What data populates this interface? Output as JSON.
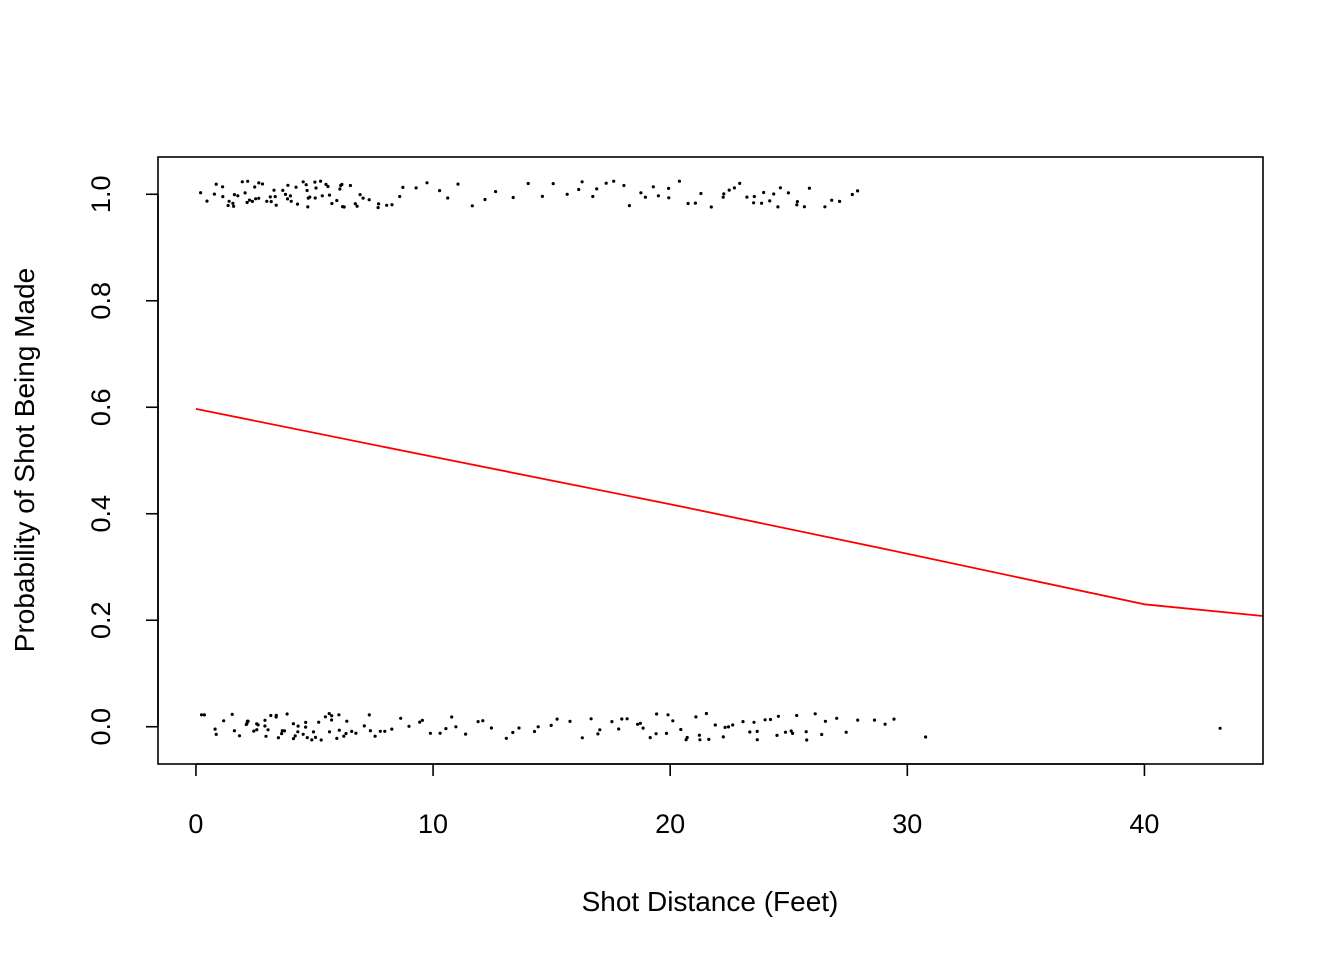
{
  "chart_data": {
    "type": "scatter",
    "title": "",
    "xlabel": "Shot Distance (Feet)",
    "ylabel": "Probability of Shot Being Made",
    "xlim": [
      -1.6,
      45
    ],
    "ylim": [
      -0.07,
      1.07
    ],
    "x_ticks": [
      "0",
      "10",
      "20",
      "30",
      "40"
    ],
    "x_tick_values": [
      0,
      10,
      20,
      30,
      40
    ],
    "y_ticks": [
      "0.0",
      "0.2",
      "0.4",
      "0.6",
      "0.8",
      "1.0"
    ],
    "y_tick_values": [
      0,
      0.2,
      0.4,
      0.6,
      0.8,
      1.0
    ],
    "grid": false,
    "legend": "none",
    "colors": {
      "points": "#000000",
      "fit_line": "#ff0000",
      "frame": "#000000"
    },
    "fitted_curve": {
      "x": [
        0,
        10,
        20,
        30,
        40,
        45
      ],
      "y": [
        0.597,
        0.507,
        0.418,
        0.325,
        0.23,
        0.208
      ]
    },
    "made_shots": {
      "y": 1.0,
      "x": [
        0.2,
        0.6,
        0.8,
        1.0,
        1.1,
        1.2,
        1.3,
        1.4,
        1.5,
        1.6,
        1.7,
        1.8,
        1.9,
        2.0,
        2.1,
        2.2,
        2.3,
        2.4,
        2.5,
        2.6,
        2.7,
        2.8,
        2.9,
        3.0,
        3.1,
        3.2,
        3.3,
        3.4,
        3.5,
        3.6,
        3.7,
        3.8,
        3.9,
        4.0,
        4.1,
        4.2,
        4.3,
        4.4,
        4.5,
        4.6,
        4.7,
        4.8,
        4.9,
        5.0,
        5.1,
        5.2,
        5.3,
        5.4,
        5.5,
        5.6,
        5.7,
        5.8,
        5.9,
        6.0,
        6.1,
        6.2,
        6.3,
        6.4,
        6.5,
        6.6,
        6.8,
        7.0,
        7.2,
        7.4,
        7.6,
        7.8,
        8.0,
        8.3,
        8.6,
        8.9,
        9.3,
        9.8,
        10.2,
        10.7,
        11.2,
        11.8,
        12.3,
        12.8,
        13.4,
        14.0,
        14.6,
        15.2,
        15.6,
        16.0,
        16.3,
        16.6,
        16.9,
        17.2,
        17.6,
        18.0,
        18.3,
        18.6,
        18.9,
        19.2,
        19.5,
        19.8,
        20.1,
        20.4,
        20.7,
        21.0,
        21.4,
        21.8,
        22.1,
        22.4,
        22.6,
        22.8,
        23.0,
        23.2,
        23.4,
        23.6,
        23.8,
        24.0,
        24.2,
        24.4,
        24.6,
        24.8,
        25.0,
        25.2,
        25.4,
        25.7,
        26.0,
        26.4,
        26.8,
        27.2,
        27.6,
        28.0
      ]
    },
    "missed_shots": {
      "y": 0.0,
      "x": [
        0.1,
        0.4,
        0.7,
        1.0,
        1.3,
        1.5,
        1.7,
        1.9,
        2.0,
        2.1,
        2.2,
        2.3,
        2.4,
        2.5,
        2.6,
        2.7,
        2.8,
        2.9,
        3.0,
        3.1,
        3.2,
        3.3,
        3.4,
        3.5,
        3.6,
        3.7,
        3.8,
        3.9,
        4.0,
        4.1,
        4.2,
        4.3,
        4.4,
        4.5,
        4.6,
        4.7,
        4.8,
        4.9,
        5.0,
        5.1,
        5.2,
        5.3,
        5.4,
        5.5,
        5.6,
        5.7,
        5.8,
        5.9,
        6.0,
        6.1,
        6.2,
        6.3,
        6.5,
        6.7,
        6.9,
        7.1,
        7.3,
        7.5,
        7.7,
        7.9,
        8.1,
        8.4,
        8.7,
        9.0,
        9.3,
        9.6,
        9.9,
        10.2,
        10.5,
        10.8,
        11.1,
        11.4,
        11.8,
        12.2,
        12.6,
        13.0,
        13.4,
        13.8,
        14.2,
        14.6,
        15.0,
        15.4,
        15.8,
        16.2,
        16.5,
        16.8,
        17.1,
        17.4,
        17.7,
        18.0,
        18.3,
        18.6,
        18.8,
        19.0,
        19.2,
        19.4,
        19.6,
        19.8,
        20.0,
        20.2,
        20.4,
        20.6,
        20.8,
        21.0,
        21.2,
        21.4,
        21.6,
        21.8,
        22.0,
        22.2,
        22.4,
        22.6,
        22.8,
        23.0,
        23.2,
        23.4,
        23.6,
        23.8,
        24.0,
        24.2,
        24.4,
        24.6,
        24.8,
        25.0,
        25.2,
        25.4,
        25.6,
        25.8,
        26.0,
        26.3,
        26.6,
        27.0,
        27.4,
        27.8,
        28.5,
        29.0,
        29.6,
        30.6,
        43.2
      ]
    }
  }
}
